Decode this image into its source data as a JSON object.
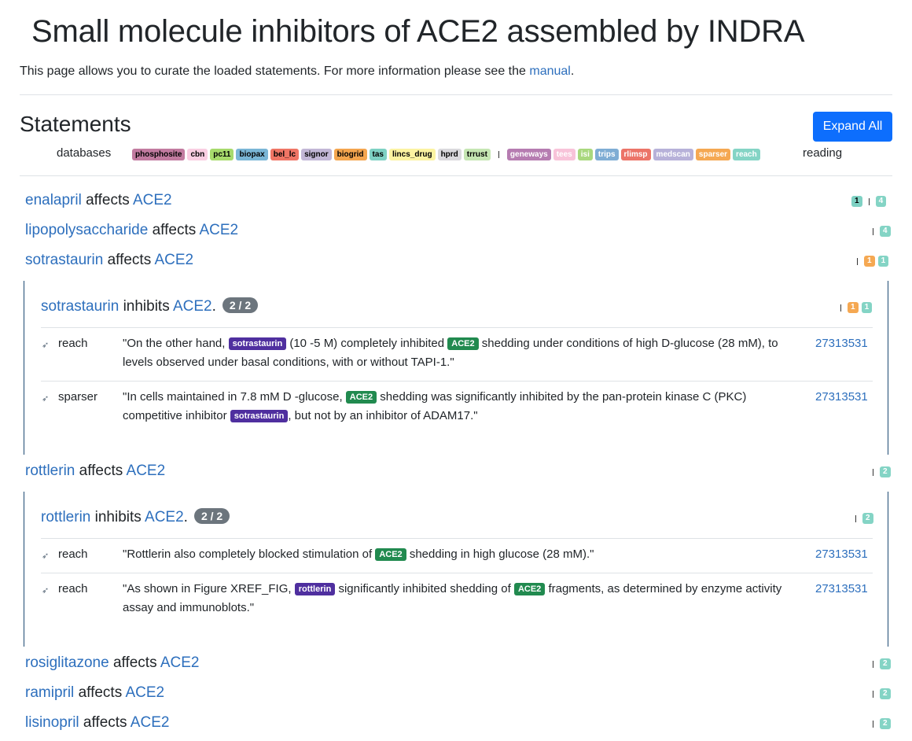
{
  "title": "Small molecule inhibitors of ACE2 assembled by INDRA",
  "intro": {
    "text": "This page allows you to curate the loaded statements. For more information please see the ",
    "link": "manual",
    "end": "."
  },
  "statements_heading": "Statements",
  "expand_all": "Expand All",
  "legend": {
    "databases_label": "databases",
    "reading_label": "reading",
    "databases": [
      {
        "name": "phosphosite",
        "color": "#c27ba0"
      },
      {
        "name": "cbn",
        "color": "#f9cee2"
      },
      {
        "name": "pc11",
        "color": "#a7da6c"
      },
      {
        "name": "biopax",
        "color": "#7ab6d6"
      },
      {
        "name": "bel_lc",
        "color": "#ef7565"
      },
      {
        "name": "signor",
        "color": "#c2b7d6"
      },
      {
        "name": "biogrid",
        "color": "#f4a54e"
      },
      {
        "name": "tas",
        "color": "#7ed1c3"
      },
      {
        "name": "lincs_drug",
        "color": "#fbf3a1"
      },
      {
        "name": "hprd",
        "color": "#dad9dd"
      },
      {
        "name": "trrust",
        "color": "#c5e6b3"
      }
    ],
    "readers": [
      {
        "name": "geneways",
        "color": "#b67cb1"
      },
      {
        "name": "tees",
        "color": "#f8c3d9"
      },
      {
        "name": "isi",
        "color": "#a9d87e"
      },
      {
        "name": "trips",
        "color": "#7fadd4"
      },
      {
        "name": "rlimsp",
        "color": "#ec7468"
      },
      {
        "name": "medscan",
        "color": "#b7b1d9"
      },
      {
        "name": "sparser",
        "color": "#f5a852"
      },
      {
        "name": "reach",
        "color": "#84d4c5"
      }
    ]
  },
  "colors": {
    "link": "#2d6fbd",
    "count_teal": "#84d4c5",
    "count_orange": "#f5a852",
    "count_tas": "#7ed1c3",
    "panel_border": "#1d4a73",
    "chem_tag": "#4f2f9f",
    "gene_tag": "#218a4f"
  },
  "statements": [
    {
      "subj": "enalapril",
      "verb": "affects",
      "obj": "ACE2",
      "counts_left": [
        "1"
      ],
      "counts_right": [
        "4"
      ]
    },
    {
      "subj": "lipopolysaccharide",
      "verb": "affects",
      "obj": "ACE2",
      "counts_right": [
        "4"
      ]
    },
    {
      "subj": "sotrastaurin",
      "verb": "affects",
      "obj": "ACE2",
      "counts_right": [
        "1",
        "1"
      ],
      "sub": {
        "subj": "sotrastaurin",
        "verb": "inhibits",
        "obj": "ACE2",
        "end": ".",
        "pill": "2 / 2",
        "counts": [
          "1",
          "1"
        ],
        "evidence": [
          {
            "icon": "➶",
            "source": "reach",
            "pre": "\"On the other hand, ",
            "chem": "sotrastaurin",
            "mid": " (10 -5 M) completely inhibited ",
            "gene": "ACE2",
            "post": " shedding under conditions of high D-glucose (28 mM), to levels observed under basal conditions, with or without TAPI-1.\"",
            "pmid": "27313531"
          },
          {
            "icon": "➶",
            "source": "sparser",
            "pre": "\"In cells maintained in 7.8 mM D -glucose, ",
            "gene": "ACE2",
            "mid": " shedding was significantly inhibited by the pan-protein kinase C (PKC) competitive inhibitor ",
            "chem": "sotrastaurin",
            "post": ", but not by an inhibitor of ADAM17.\"",
            "pmid": "27313531"
          }
        ]
      }
    },
    {
      "subj": "rottlerin",
      "verb": "affects",
      "obj": "ACE2",
      "counts_right": [
        "2"
      ],
      "sub": {
        "subj": "rottlerin",
        "verb": "inhibits",
        "obj": "ACE2",
        "end": ".",
        "pill": "2 / 2",
        "counts": [
          "2"
        ],
        "evidence": [
          {
            "icon": "➶",
            "source": "reach",
            "pre": "\"Rottlerin also completely blocked stimulation of ",
            "gene": "ACE2",
            "post": " shedding in high glucose (28 mM).\"",
            "pmid": "27313531"
          },
          {
            "icon": "➶",
            "source": "reach",
            "pre": "\"As shown in Figure XREF_FIG, ",
            "chem": "rottlerin",
            "mid": " significantly inhibited shedding of ",
            "gene": "ACE2",
            "post": " fragments, as determined by enzyme activity assay and immunoblots.\"",
            "pmid": "27313531"
          }
        ]
      }
    },
    {
      "subj": "rosiglitazone",
      "verb": "affects",
      "obj": "ACE2",
      "counts_right": [
        "2"
      ]
    },
    {
      "subj": "ramipril",
      "verb": "affects",
      "obj": "ACE2",
      "counts_right": [
        "2"
      ]
    },
    {
      "subj": "lisinopril",
      "verb": "affects",
      "obj": "ACE2",
      "counts_right": [
        "2"
      ]
    }
  ]
}
